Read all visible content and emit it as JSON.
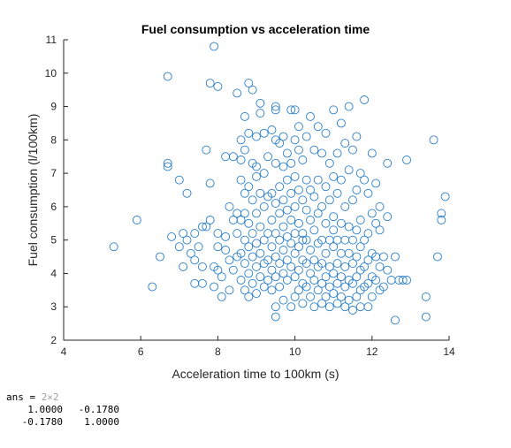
{
  "chart_data": {
    "type": "scatter",
    "title": "Fuel consumption vs acceleration time",
    "xlabel": "Acceleration time to 100km (s)",
    "ylabel": "Fuel consumption (l/100km)",
    "xlim": [
      4,
      14
    ],
    "ylim": [
      2,
      11
    ],
    "xticks": [
      "4",
      "6",
      "8",
      "10",
      "12",
      "14"
    ],
    "yticks": [
      "2",
      "3",
      "4",
      "5",
      "6",
      "7",
      "8",
      "9",
      "10",
      "11"
    ],
    "grid": false,
    "marker": "open-circle",
    "color": "#2b7fc9",
    "points": [
      [
        5.3,
        4.8
      ],
      [
        5.9,
        5.6
      ],
      [
        6.3,
        3.6
      ],
      [
        6.5,
        4.5
      ],
      [
        6.7,
        9.9
      ],
      [
        6.7,
        7.3
      ],
      [
        6.7,
        7.2
      ],
      [
        6.8,
        5.1
      ],
      [
        7.0,
        6.8
      ],
      [
        7.0,
        4.8
      ],
      [
        7.1,
        5.2
      ],
      [
        7.1,
        4.2
      ],
      [
        7.2,
        6.4
      ],
      [
        7.2,
        5.0
      ],
      [
        7.3,
        4.6
      ],
      [
        7.4,
        5.2
      ],
      [
        7.4,
        4.4
      ],
      [
        7.4,
        3.7
      ],
      [
        7.5,
        4.8
      ],
      [
        7.6,
        5.4
      ],
      [
        7.6,
        4.2
      ],
      [
        7.6,
        3.7
      ],
      [
        7.7,
        7.7
      ],
      [
        7.7,
        5.4
      ],
      [
        7.8,
        9.7
      ],
      [
        7.8,
        5.6
      ],
      [
        7.8,
        6.7
      ],
      [
        7.9,
        10.8
      ],
      [
        7.9,
        4.2
      ],
      [
        7.9,
        3.6
      ],
      [
        8.0,
        9.6
      ],
      [
        8.0,
        5.2
      ],
      [
        8.0,
        4.8
      ],
      [
        8.0,
        4.1
      ],
      [
        8.1,
        3.9
      ],
      [
        8.1,
        3.3
      ],
      [
        8.2,
        7.5
      ],
      [
        8.2,
        5.1
      ],
      [
        8.2,
        4.7
      ],
      [
        8.3,
        4.4
      ],
      [
        8.3,
        3.5
      ],
      [
        8.4,
        7.5
      ],
      [
        8.4,
        5.6
      ],
      [
        8.4,
        4.1
      ],
      [
        8.5,
        9.4
      ],
      [
        8.5,
        5.8
      ],
      [
        8.5,
        5.2
      ],
      [
        8.5,
        4.5
      ],
      [
        8.6,
        8.0
      ],
      [
        8.6,
        7.4
      ],
      [
        8.6,
        6.8
      ],
      [
        8.6,
        5.6
      ],
      [
        8.6,
        4.6
      ],
      [
        8.6,
        3.8
      ],
      [
        8.7,
        8.7
      ],
      [
        8.7,
        7.7
      ],
      [
        8.7,
        6.4
      ],
      [
        8.7,
        5.8
      ],
      [
        8.7,
        5.0
      ],
      [
        8.7,
        4.3
      ],
      [
        8.7,
        3.5
      ],
      [
        8.8,
        9.7
      ],
      [
        8.8,
        8.2
      ],
      [
        8.8,
        6.6
      ],
      [
        8.8,
        5.5
      ],
      [
        8.8,
        4.8
      ],
      [
        8.8,
        4.0
      ],
      [
        8.8,
        3.3
      ],
      [
        8.9,
        9.5
      ],
      [
        8.9,
        7.3
      ],
      [
        8.9,
        6.2
      ],
      [
        8.9,
        5.2
      ],
      [
        8.9,
        4.5
      ],
      [
        8.9,
        3.7
      ],
      [
        9.0,
        8.1
      ],
      [
        9.0,
        7.2
      ],
      [
        9.0,
        5.8
      ],
      [
        9.0,
        4.9
      ],
      [
        9.0,
        4.2
      ],
      [
        9.0,
        3.4
      ],
      [
        9.1,
        9.1
      ],
      [
        9.1,
        8.8
      ],
      [
        9.1,
        6.4
      ],
      [
        9.1,
        5.4
      ],
      [
        9.1,
        4.6
      ],
      [
        9.1,
        3.9
      ],
      [
        9.2,
        8.2
      ],
      [
        9.2,
        7.0
      ],
      [
        9.2,
        6.0
      ],
      [
        9.2,
        5.0
      ],
      [
        9.2,
        4.3
      ],
      [
        9.2,
        3.6
      ],
      [
        9.3,
        7.5
      ],
      [
        9.3,
        6.3
      ],
      [
        9.3,
        5.2
      ],
      [
        9.3,
        4.4
      ],
      [
        9.3,
        3.8
      ],
      [
        9.4,
        8.3
      ],
      [
        9.4,
        6.4
      ],
      [
        9.4,
        5.6
      ],
      [
        9.4,
        4.8
      ],
      [
        9.4,
        4.1
      ],
      [
        9.4,
        3.5
      ],
      [
        9.5,
        9.0
      ],
      [
        9.5,
        8.9
      ],
      [
        9.5,
        8.0
      ],
      [
        9.5,
        7.3
      ],
      [
        9.5,
        6.1
      ],
      [
        9.5,
        5.2
      ],
      [
        9.5,
        4.5
      ],
      [
        9.5,
        3.9
      ],
      [
        9.5,
        3.0
      ],
      [
        9.5,
        2.7
      ],
      [
        9.6,
        7.9
      ],
      [
        9.6,
        6.6
      ],
      [
        9.6,
        5.8
      ],
      [
        9.6,
        5.0
      ],
      [
        9.6,
        4.3
      ],
      [
        9.6,
        3.6
      ],
      [
        9.7,
        8.1
      ],
      [
        9.7,
        7.2
      ],
      [
        9.7,
        6.2
      ],
      [
        9.7,
        5.4
      ],
      [
        9.7,
        4.7
      ],
      [
        9.7,
        4.0
      ],
      [
        9.7,
        3.2
      ],
      [
        9.8,
        7.6
      ],
      [
        9.8,
        6.8
      ],
      [
        9.8,
        5.9
      ],
      [
        9.8,
        5.1
      ],
      [
        9.8,
        4.4
      ],
      [
        9.8,
        3.8
      ],
      [
        9.9,
        8.9
      ],
      [
        9.9,
        7.3
      ],
      [
        9.9,
        6.4
      ],
      [
        9.9,
        5.6
      ],
      [
        9.9,
        4.9
      ],
      [
        9.9,
        4.2
      ],
      [
        9.9,
        3.0
      ],
      [
        10.0,
        8.9
      ],
      [
        10.0,
        8.0
      ],
      [
        10.0,
        6.9
      ],
      [
        10.0,
        6.0
      ],
      [
        10.0,
        5.2
      ],
      [
        10.0,
        4.6
      ],
      [
        10.0,
        3.9
      ],
      [
        10.0,
        3.3
      ],
      [
        10.1,
        8.4
      ],
      [
        10.1,
        7.7
      ],
      [
        10.1,
        6.5
      ],
      [
        10.1,
        5.5
      ],
      [
        10.1,
        4.8
      ],
      [
        10.1,
        4.1
      ],
      [
        10.1,
        3.5
      ],
      [
        10.2,
        7.4
      ],
      [
        10.2,
        6.2
      ],
      [
        10.2,
        5.2
      ],
      [
        10.2,
        4.4
      ],
      [
        10.2,
        3.7
      ],
      [
        10.2,
        3.1
      ],
      [
        10.3,
        8.1
      ],
      [
        10.3,
        6.8
      ],
      [
        10.3,
        5.9
      ],
      [
        10.3,
        5.0
      ],
      [
        10.3,
        4.3
      ],
      [
        10.3,
        3.6
      ],
      [
        10.4,
        8.7
      ],
      [
        10.4,
        6.5
      ],
      [
        10.4,
        5.6
      ],
      [
        10.4,
        4.7
      ],
      [
        10.4,
        4.0
      ],
      [
        10.4,
        3.3
      ],
      [
        10.5,
        7.7
      ],
      [
        10.5,
        6.3
      ],
      [
        10.5,
        5.3
      ],
      [
        10.5,
        4.4
      ],
      [
        10.5,
        3.8
      ],
      [
        10.5,
        3.0
      ],
      [
        10.6,
        8.4
      ],
      [
        10.6,
        6.8
      ],
      [
        10.6,
        5.8
      ],
      [
        10.6,
        4.9
      ],
      [
        10.6,
        4.2
      ],
      [
        10.6,
        3.5
      ],
      [
        10.7,
        7.6
      ],
      [
        10.7,
        6.0
      ],
      [
        10.7,
        5.0
      ],
      [
        10.7,
        4.3
      ],
      [
        10.7,
        3.7
      ],
      [
        10.7,
        3.1
      ],
      [
        10.8,
        8.2
      ],
      [
        10.8,
        6.6
      ],
      [
        10.8,
        5.5
      ],
      [
        10.8,
        4.6
      ],
      [
        10.8,
        3.9
      ],
      [
        10.8,
        3.3
      ],
      [
        10.9,
        7.3
      ],
      [
        10.9,
        6.2
      ],
      [
        10.9,
        5.0
      ],
      [
        10.9,
        4.2
      ],
      [
        10.9,
        3.6
      ],
      [
        10.9,
        3.0
      ],
      [
        11.0,
        8.9
      ],
      [
        11.0,
        6.9
      ],
      [
        11.0,
        5.7
      ],
      [
        11.0,
        4.8
      ],
      [
        11.0,
        4.0
      ],
      [
        11.0,
        3.4
      ],
      [
        11.1,
        7.6
      ],
      [
        11.1,
        6.4
      ],
      [
        11.1,
        5.0
      ],
      [
        11.1,
        4.3
      ],
      [
        11.1,
        3.7
      ],
      [
        11.1,
        3.1
      ],
      [
        11.2,
        8.5
      ],
      [
        11.2,
        6.8
      ],
      [
        11.2,
        5.5
      ],
      [
        11.2,
        4.6
      ],
      [
        11.2,
        3.9
      ],
      [
        11.2,
        3.3
      ],
      [
        11.3,
        7.9
      ],
      [
        11.3,
        6.0
      ],
      [
        11.3,
        5.0
      ],
      [
        11.3,
        4.2
      ],
      [
        11.3,
        3.6
      ],
      [
        11.3,
        3.0
      ],
      [
        11.4,
        9.0
      ],
      [
        11.4,
        7.1
      ],
      [
        11.4,
        5.4
      ],
      [
        11.4,
        4.6
      ],
      [
        11.4,
        3.8
      ],
      [
        11.4,
        3.2
      ],
      [
        11.5,
        7.7
      ],
      [
        11.5,
        6.2
      ],
      [
        11.5,
        5.0
      ],
      [
        11.5,
        4.3
      ],
      [
        11.5,
        3.7
      ],
      [
        11.5,
        2.9
      ],
      [
        11.6,
        8.1
      ],
      [
        11.6,
        6.5
      ],
      [
        11.6,
        5.3
      ],
      [
        11.6,
        4.5
      ],
      [
        11.6,
        3.9
      ],
      [
        11.6,
        3.3
      ],
      [
        11.7,
        7.0
      ],
      [
        11.7,
        5.6
      ],
      [
        11.7,
        4.8
      ],
      [
        11.7,
        4.1
      ],
      [
        11.7,
        3.5
      ],
      [
        11.7,
        3.0
      ],
      [
        11.8,
        9.2
      ],
      [
        11.8,
        6.8
      ],
      [
        11.8,
        5.0
      ],
      [
        11.8,
        4.2
      ],
      [
        11.8,
        3.6
      ],
      [
        11.9,
        6.4
      ],
      [
        11.9,
        5.2
      ],
      [
        11.9,
        4.4
      ],
      [
        11.9,
        3.7
      ],
      [
        11.9,
        3.0
      ],
      [
        12.0,
        7.6
      ],
      [
        12.0,
        5.8
      ],
      [
        12.0,
        4.6
      ],
      [
        12.0,
        3.9
      ],
      [
        12.0,
        3.3
      ],
      [
        12.1,
        6.7
      ],
      [
        12.1,
        5.5
      ],
      [
        12.1,
        4.5
      ],
      [
        12.1,
        3.8
      ],
      [
        12.2,
        6.0
      ],
      [
        12.2,
        5.3
      ],
      [
        12.2,
        4.2
      ],
      [
        12.2,
        3.5
      ],
      [
        12.3,
        4.5
      ],
      [
        12.3,
        3.6
      ],
      [
        12.4,
        7.3
      ],
      [
        12.4,
        5.7
      ],
      [
        12.4,
        4.1
      ],
      [
        12.5,
        3.8
      ],
      [
        12.6,
        4.5
      ],
      [
        12.6,
        2.6
      ],
      [
        12.7,
        3.8
      ],
      [
        12.8,
        3.8
      ],
      [
        12.9,
        7.4
      ],
      [
        12.9,
        3.8
      ],
      [
        13.4,
        3.3
      ],
      [
        13.4,
        2.7
      ],
      [
        13.6,
        8.0
      ],
      [
        13.7,
        4.5
      ],
      [
        13.8,
        5.8
      ],
      [
        13.8,
        5.6
      ],
      [
        13.9,
        6.3
      ],
      [
        8.3,
        6.0
      ],
      [
        9.0,
        6.9
      ],
      [
        10.2,
        5.0
      ],
      [
        11.0,
        5.3
      ]
    ]
  },
  "console": {
    "ans_label": "ans =",
    "ans_size": "2×2",
    "matrix": [
      [
        "1.0000",
        "-0.1780"
      ],
      [
        "-0.1780",
        "1.0000"
      ]
    ]
  }
}
